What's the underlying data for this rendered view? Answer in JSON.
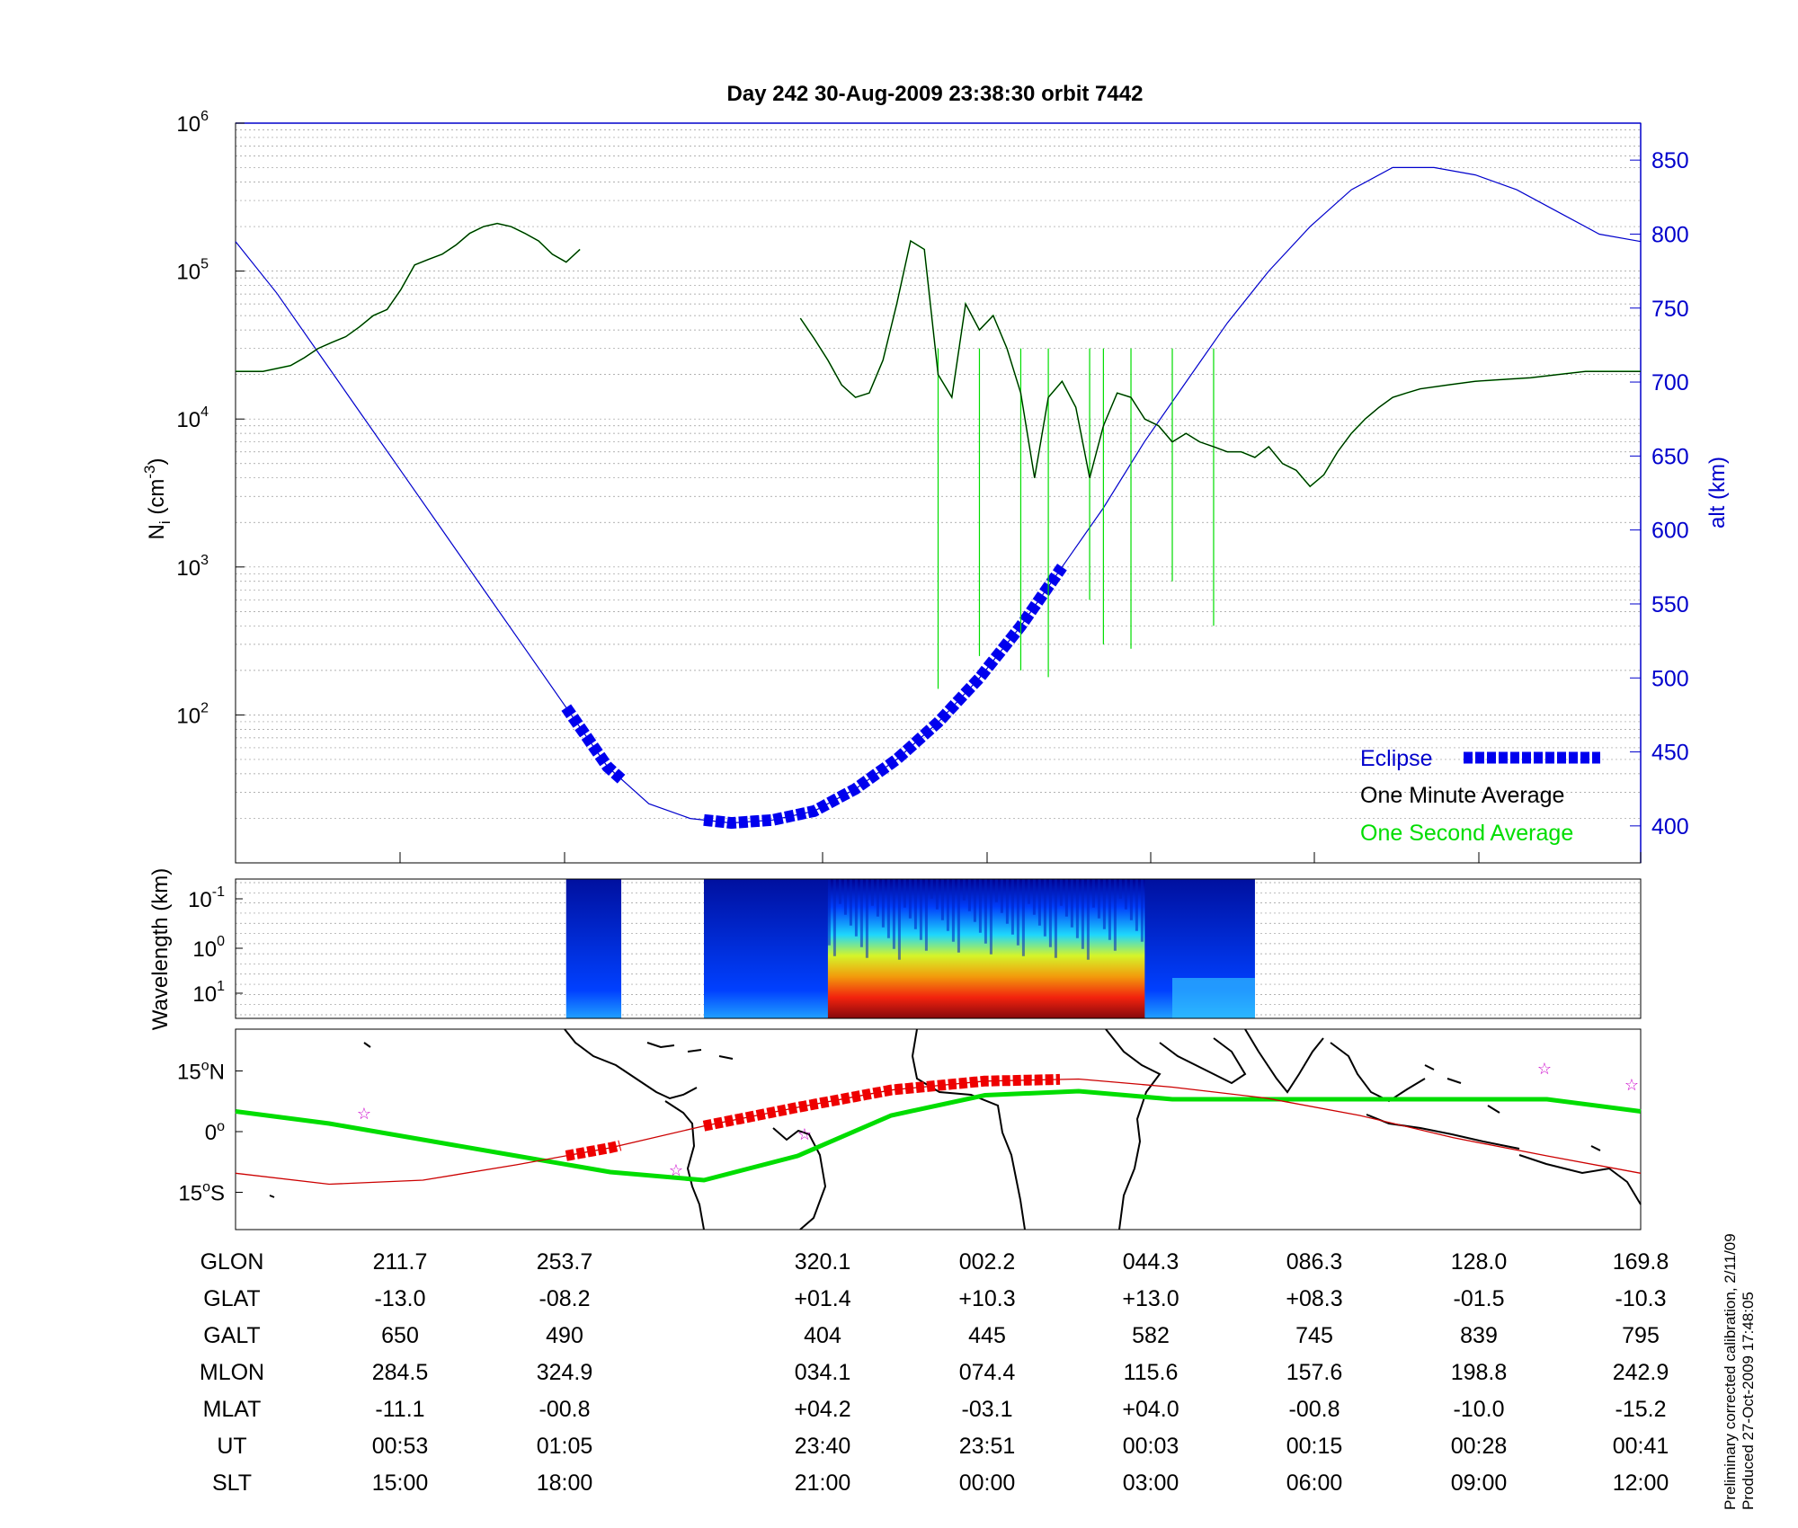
{
  "title": "Day 242  30-Aug-2009 23:38:30   orbit 7442",
  "footer": {
    "line1": "Preliminary corrected calibration, 2/11/09",
    "line2": "Produced 27-Oct-2009 17:48:05"
  },
  "colors": {
    "axis_blue": "#0000cc",
    "minute_avg": "#000000",
    "second_avg": "#00dd00",
    "eclipse": "#0000ee",
    "orbit_track": "#cc0000",
    "equator_track": "#00dd00",
    "star": "#cc00cc"
  },
  "chart_data": [
    {
      "type": "line",
      "id": "density_altitude",
      "title": "Day 242  30-Aug-2009 23:38:30   orbit 7442",
      "ylabel_main": "N",
      "ylabel_sub": "i",
      "ylabel_unit_pre": " (cm",
      "ylabel_unit_sup": "-3",
      "ylabel_unit_post": ")",
      "y2label": "alt (km)",
      "y_scale": "log",
      "ylim": [
        10,
        1000000
      ],
      "y_ticks": [
        {
          "base": "10",
          "exp": "2",
          "value": 100
        },
        {
          "base": "10",
          "exp": "3",
          "value": 1000
        },
        {
          "base": "10",
          "exp": "4",
          "value": 10000
        },
        {
          "base": "10",
          "exp": "5",
          "value": 100000
        },
        {
          "base": "10",
          "exp": "6",
          "value": 1000000
        }
      ],
      "y2lim": [
        375,
        875
      ],
      "y2_ticks": [
        "400",
        "450",
        "500",
        "550",
        "600",
        "650",
        "700",
        "750",
        "800",
        "850"
      ],
      "x_unit": "UT minutes (relative)",
      "xlim": [
        0,
        102
      ],
      "grid": true,
      "legend_position": "bottom-right",
      "legend": [
        {
          "label": "Eclipse",
          "color": "#0000ee",
          "style": "dashed-thick"
        },
        {
          "label": "One Minute Average",
          "color": "#000000",
          "style": "text"
        },
        {
          "label": "One Second Average",
          "color": "#00dd00",
          "style": "text"
        }
      ],
      "series": [
        {
          "name": "One Minute Average",
          "x": [
            0,
            2,
            4,
            5,
            6,
            7,
            8,
            9,
            10,
            11,
            12,
            13,
            14,
            15,
            16,
            17,
            18,
            19,
            20,
            21,
            22,
            23,
            24,
            25,
            26,
            27,
            28,
            29,
            30,
            31,
            32,
            33,
            34,
            35,
            36,
            37,
            38,
            39,
            40,
            41,
            42,
            43,
            44,
            45,
            46,
            47,
            48,
            49,
            50,
            51,
            52,
            53,
            54,
            55,
            56,
            57,
            58,
            59,
            60,
            61,
            62,
            63,
            64,
            65,
            66,
            67,
            68,
            69,
            70,
            71,
            72,
            73,
            74,
            75,
            76,
            77,
            78,
            79,
            80,
            81,
            82,
            83,
            84,
            85,
            86,
            88,
            90,
            92,
            94,
            96,
            98,
            100,
            102
          ],
          "y": [
            21000,
            21000,
            23000,
            26000,
            30000,
            33000,
            36000,
            42000,
            50000,
            55000,
            75000,
            110000,
            120000,
            130000,
            150000,
            180000,
            200000,
            210000,
            200000,
            180000,
            160000,
            130000,
            115000,
            140000,
            null,
            null,
            null,
            null,
            null,
            null,
            null,
            null,
            null,
            null,
            null,
            null,
            null,
            null,
            null,
            null,
            null,
            null,
            null,
            null,
            null,
            null,
            null,
            null,
            null,
            null,
            null,
            null,
            null,
            null,
            null,
            null,
            null,
            null,
            null,
            null,
            null,
            null,
            null,
            null,
            null,
            null,
            null,
            null,
            null,
            null,
            null,
            null,
            null,
            null,
            null,
            null,
            null,
            null,
            null,
            null,
            null,
            null,
            null,
            null,
            null,
            null,
            null,
            null,
            null,
            null,
            null,
            null,
            null
          ]
        },
        {
          "name": "One Minute Average",
          "x": [
            41,
            42,
            43,
            44,
            45,
            46,
            47,
            48,
            49,
            50,
            51,
            52,
            53,
            54,
            55,
            56,
            57,
            58,
            59,
            60,
            61,
            62,
            63,
            64,
            65,
            66,
            67,
            68,
            69,
            70,
            71,
            72,
            73,
            74,
            75,
            76,
            77,
            78,
            79,
            80,
            81,
            82,
            83,
            84,
            85,
            86,
            88,
            90,
            92,
            94,
            96,
            98,
            100,
            102
          ],
          "y": [
            48000,
            35000,
            25000,
            17000,
            14000,
            15000,
            25000,
            60000,
            160000,
            140000,
            20000,
            14000,
            60000,
            40000,
            50000,
            30000,
            15000,
            4000,
            14000,
            18000,
            12000,
            4000,
            9000,
            15000,
            14000,
            10000,
            9000,
            7000,
            8000,
            7000,
            6500,
            6000,
            6000,
            5500,
            6500,
            5000,
            4500,
            3500,
            4200,
            6000,
            8000,
            10000,
            12000,
            14000,
            15000,
            16000,
            17000,
            18000,
            18500,
            19000,
            20000,
            21000,
            21000,
            21000
          ]
        }
      ],
      "second_avg_dropouts_x": [
        51,
        54,
        57,
        59,
        62,
        63,
        65,
        68,
        71
      ],
      "altitude": {
        "x": [
          0,
          3,
          6,
          9,
          12,
          15,
          18,
          21,
          24,
          27,
          30,
          33,
          36,
          39,
          42,
          45,
          48,
          51,
          54,
          57,
          60,
          63,
          66,
          69,
          72,
          75,
          78,
          81,
          84,
          87,
          90,
          93,
          96,
          99,
          102
        ],
        "alt_km": [
          795,
          760,
          720,
          680,
          640,
          600,
          560,
          520,
          480,
          440,
          415,
          405,
          402,
          404,
          410,
          425,
          445,
          470,
          500,
          535,
          575,
          615,
          660,
          700,
          740,
          775,
          805,
          830,
          845,
          845,
          840,
          830,
          815,
          800,
          795
        ]
      },
      "eclipse_segments": [
        {
          "x_start": 24,
          "x_end": 28
        },
        {
          "x_start": 34,
          "x_end": 60
        }
      ]
    },
    {
      "type": "heatmap",
      "id": "wavelength_spectrogram",
      "ylabel": "Wavelength (km)",
      "y_scale": "log",
      "y_ticks": [
        {
          "base": "10",
          "exp": "-1"
        },
        {
          "base": "10",
          "exp": "0"
        },
        {
          "base": "10",
          "exp": "1"
        }
      ],
      "segments": [
        {
          "x_start": 24,
          "x_end": 28,
          "intensity": "low"
        },
        {
          "x_start": 34,
          "x_end": 74,
          "intensity": "mixed"
        }
      ],
      "colormap": "jet"
    },
    {
      "type": "map",
      "id": "ground_track",
      "y_ticks": [
        {
          "value": "15",
          "suffix": "N"
        },
        {
          "value": "0",
          "suffix": ""
        },
        {
          "value": "15",
          "suffix": "S"
        }
      ],
      "orbit_track_glat": [
        -10.3,
        -13.0,
        -12.0,
        -8.2,
        -4,
        1.4,
        6,
        10.3,
        12.5,
        13.0,
        11,
        8.3,
        4,
        -1.5,
        -6,
        -10.3
      ],
      "equator_track_glat": [
        5,
        2,
        -2,
        -6,
        -10,
        -12,
        -6,
        4,
        9,
        10,
        8,
        8,
        8,
        8,
        8,
        5
      ]
    }
  ],
  "table": {
    "row_labels": [
      "GLON",
      "GLAT",
      "GALT",
      "MLON",
      "MLAT",
      "UT",
      "SLT"
    ],
    "columns": [
      [
        "211.7",
        "-13.0",
        "650",
        "284.5",
        "-11.1",
        "00:53",
        "15:00"
      ],
      [
        "253.7",
        "-08.2",
        "490",
        "324.9",
        "-00.8",
        "01:05",
        "18:00"
      ],
      [
        "320.1",
        "+01.4",
        "404",
        "034.1",
        "+04.2",
        "23:40",
        "21:00"
      ],
      [
        "002.2",
        "+10.3",
        "445",
        "074.4",
        "-03.1",
        "23:51",
        "00:00"
      ],
      [
        "044.3",
        "+13.0",
        "582",
        "115.6",
        "+04.0",
        "00:03",
        "03:00"
      ],
      [
        "086.3",
        "+08.3",
        "745",
        "157.6",
        "-00.8",
        "00:15",
        "06:00"
      ],
      [
        "128.0",
        "-01.5",
        "839",
        "198.8",
        "-10.0",
        "00:28",
        "09:00"
      ],
      [
        "169.8",
        "-10.3",
        "795",
        "242.9",
        "-15.2",
        "00:41",
        "12:00"
      ]
    ]
  }
}
